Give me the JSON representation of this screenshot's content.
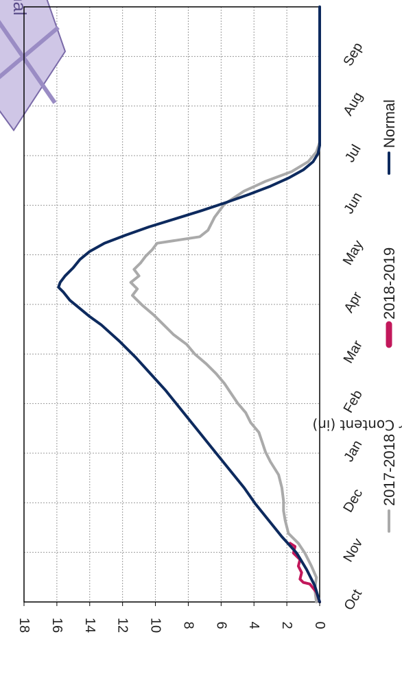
{
  "chart_data": {
    "type": "line",
    "title": "",
    "xlabel": "",
    "ylabel": "Water Content (in)",
    "categories": [
      "Oct",
      "Nov",
      "Dec",
      "Jan",
      "Feb",
      "Mar",
      "Apr",
      "May",
      "Jun",
      "Jul",
      "Aug",
      "Sep"
    ],
    "xlim": [
      0,
      365
    ],
    "ylim": [
      0,
      18
    ],
    "yticks": [
      0,
      2,
      4,
      6,
      8,
      10,
      12,
      14,
      16,
      18
    ],
    "grid": true,
    "legend": "bottom",
    "badge_text": "of Normal",
    "series": [
      {
        "name": "2017-2018",
        "color": "#aaaaaa",
        "points": [
          [
            0,
            0.2
          ],
          [
            8,
            0.3
          ],
          [
            15,
            0.2
          ],
          [
            22,
            0.5
          ],
          [
            30,
            0.9
          ],
          [
            36,
            1.3
          ],
          [
            42,
            1.9
          ],
          [
            50,
            2.1
          ],
          [
            56,
            2.2
          ],
          [
            62,
            2.2
          ],
          [
            70,
            2.3
          ],
          [
            78,
            2.5
          ],
          [
            86,
            3.0
          ],
          [
            92,
            3.3
          ],
          [
            98,
            3.5
          ],
          [
            104,
            3.7
          ],
          [
            110,
            4.2
          ],
          [
            116,
            4.5
          ],
          [
            122,
            5.0
          ],
          [
            128,
            5.4
          ],
          [
            134,
            5.8
          ],
          [
            140,
            6.3
          ],
          [
            146,
            6.9
          ],
          [
            152,
            7.6
          ],
          [
            158,
            8.1
          ],
          [
            164,
            8.9
          ],
          [
            170,
            9.5
          ],
          [
            176,
            10.1
          ],
          [
            182,
            10.8
          ],
          [
            188,
            11.4
          ],
          [
            192,
            11.1
          ],
          [
            196,
            11.5
          ],
          [
            200,
            11.0
          ],
          [
            204,
            11.3
          ],
          [
            208,
            10.9
          ],
          [
            212,
            10.6
          ],
          [
            216,
            10.2
          ],
          [
            220,
            9.9
          ],
          [
            224,
            7.3
          ],
          [
            228,
            6.8
          ],
          [
            236,
            6.4
          ],
          [
            244,
            5.8
          ],
          [
            252,
            4.6
          ],
          [
            258,
            3.3
          ],
          [
            264,
            1.7
          ],
          [
            270,
            0.7
          ],
          [
            276,
            0.2
          ],
          [
            282,
            0.0
          ],
          [
            365,
            0.0
          ]
        ]
      },
      {
        "name": "2018-2019",
        "color": "#c2185b",
        "points": [
          [
            0,
            0.0
          ],
          [
            6,
            0.2
          ],
          [
            11,
            0.6
          ],
          [
            12,
            1.0
          ],
          [
            14,
            1.2
          ],
          [
            18,
            1.1
          ],
          [
            22,
            1.3
          ],
          [
            26,
            1.2
          ],
          [
            30,
            1.6
          ],
          [
            34,
            1.5
          ],
          [
            36,
            1.8
          ]
        ]
      },
      {
        "name": "Normal",
        "color": "#0d2a5e",
        "points": [
          [
            0,
            0.0
          ],
          [
            10,
            0.3
          ],
          [
            20,
            0.8
          ],
          [
            30,
            1.4
          ],
          [
            40,
            2.3
          ],
          [
            50,
            3.1
          ],
          [
            60,
            3.9
          ],
          [
            70,
            4.6
          ],
          [
            80,
            5.4
          ],
          [
            90,
            6.2
          ],
          [
            100,
            7.0
          ],
          [
            110,
            7.8
          ],
          [
            120,
            8.6
          ],
          [
            130,
            9.4
          ],
          [
            140,
            10.3
          ],
          [
            150,
            11.2
          ],
          [
            160,
            12.2
          ],
          [
            170,
            13.3
          ],
          [
            175,
            14.0
          ],
          [
            180,
            14.6
          ],
          [
            185,
            15.2
          ],
          [
            190,
            15.6
          ],
          [
            193,
            15.9
          ],
          [
            196,
            15.8
          ],
          [
            200,
            15.5
          ],
          [
            205,
            15.0
          ],
          [
            210,
            14.6
          ],
          [
            215,
            14.0
          ],
          [
            220,
            13.1
          ],
          [
            225,
            11.8
          ],
          [
            230,
            10.4
          ],
          [
            235,
            8.8
          ],
          [
            240,
            7.2
          ],
          [
            245,
            5.7
          ],
          [
            250,
            4.3
          ],
          [
            255,
            3.0
          ],
          [
            260,
            1.9
          ],
          [
            265,
            1.0
          ],
          [
            270,
            0.4
          ],
          [
            275,
            0.1
          ],
          [
            280,
            0.0
          ],
          [
            365,
            0.0
          ]
        ]
      }
    ]
  }
}
